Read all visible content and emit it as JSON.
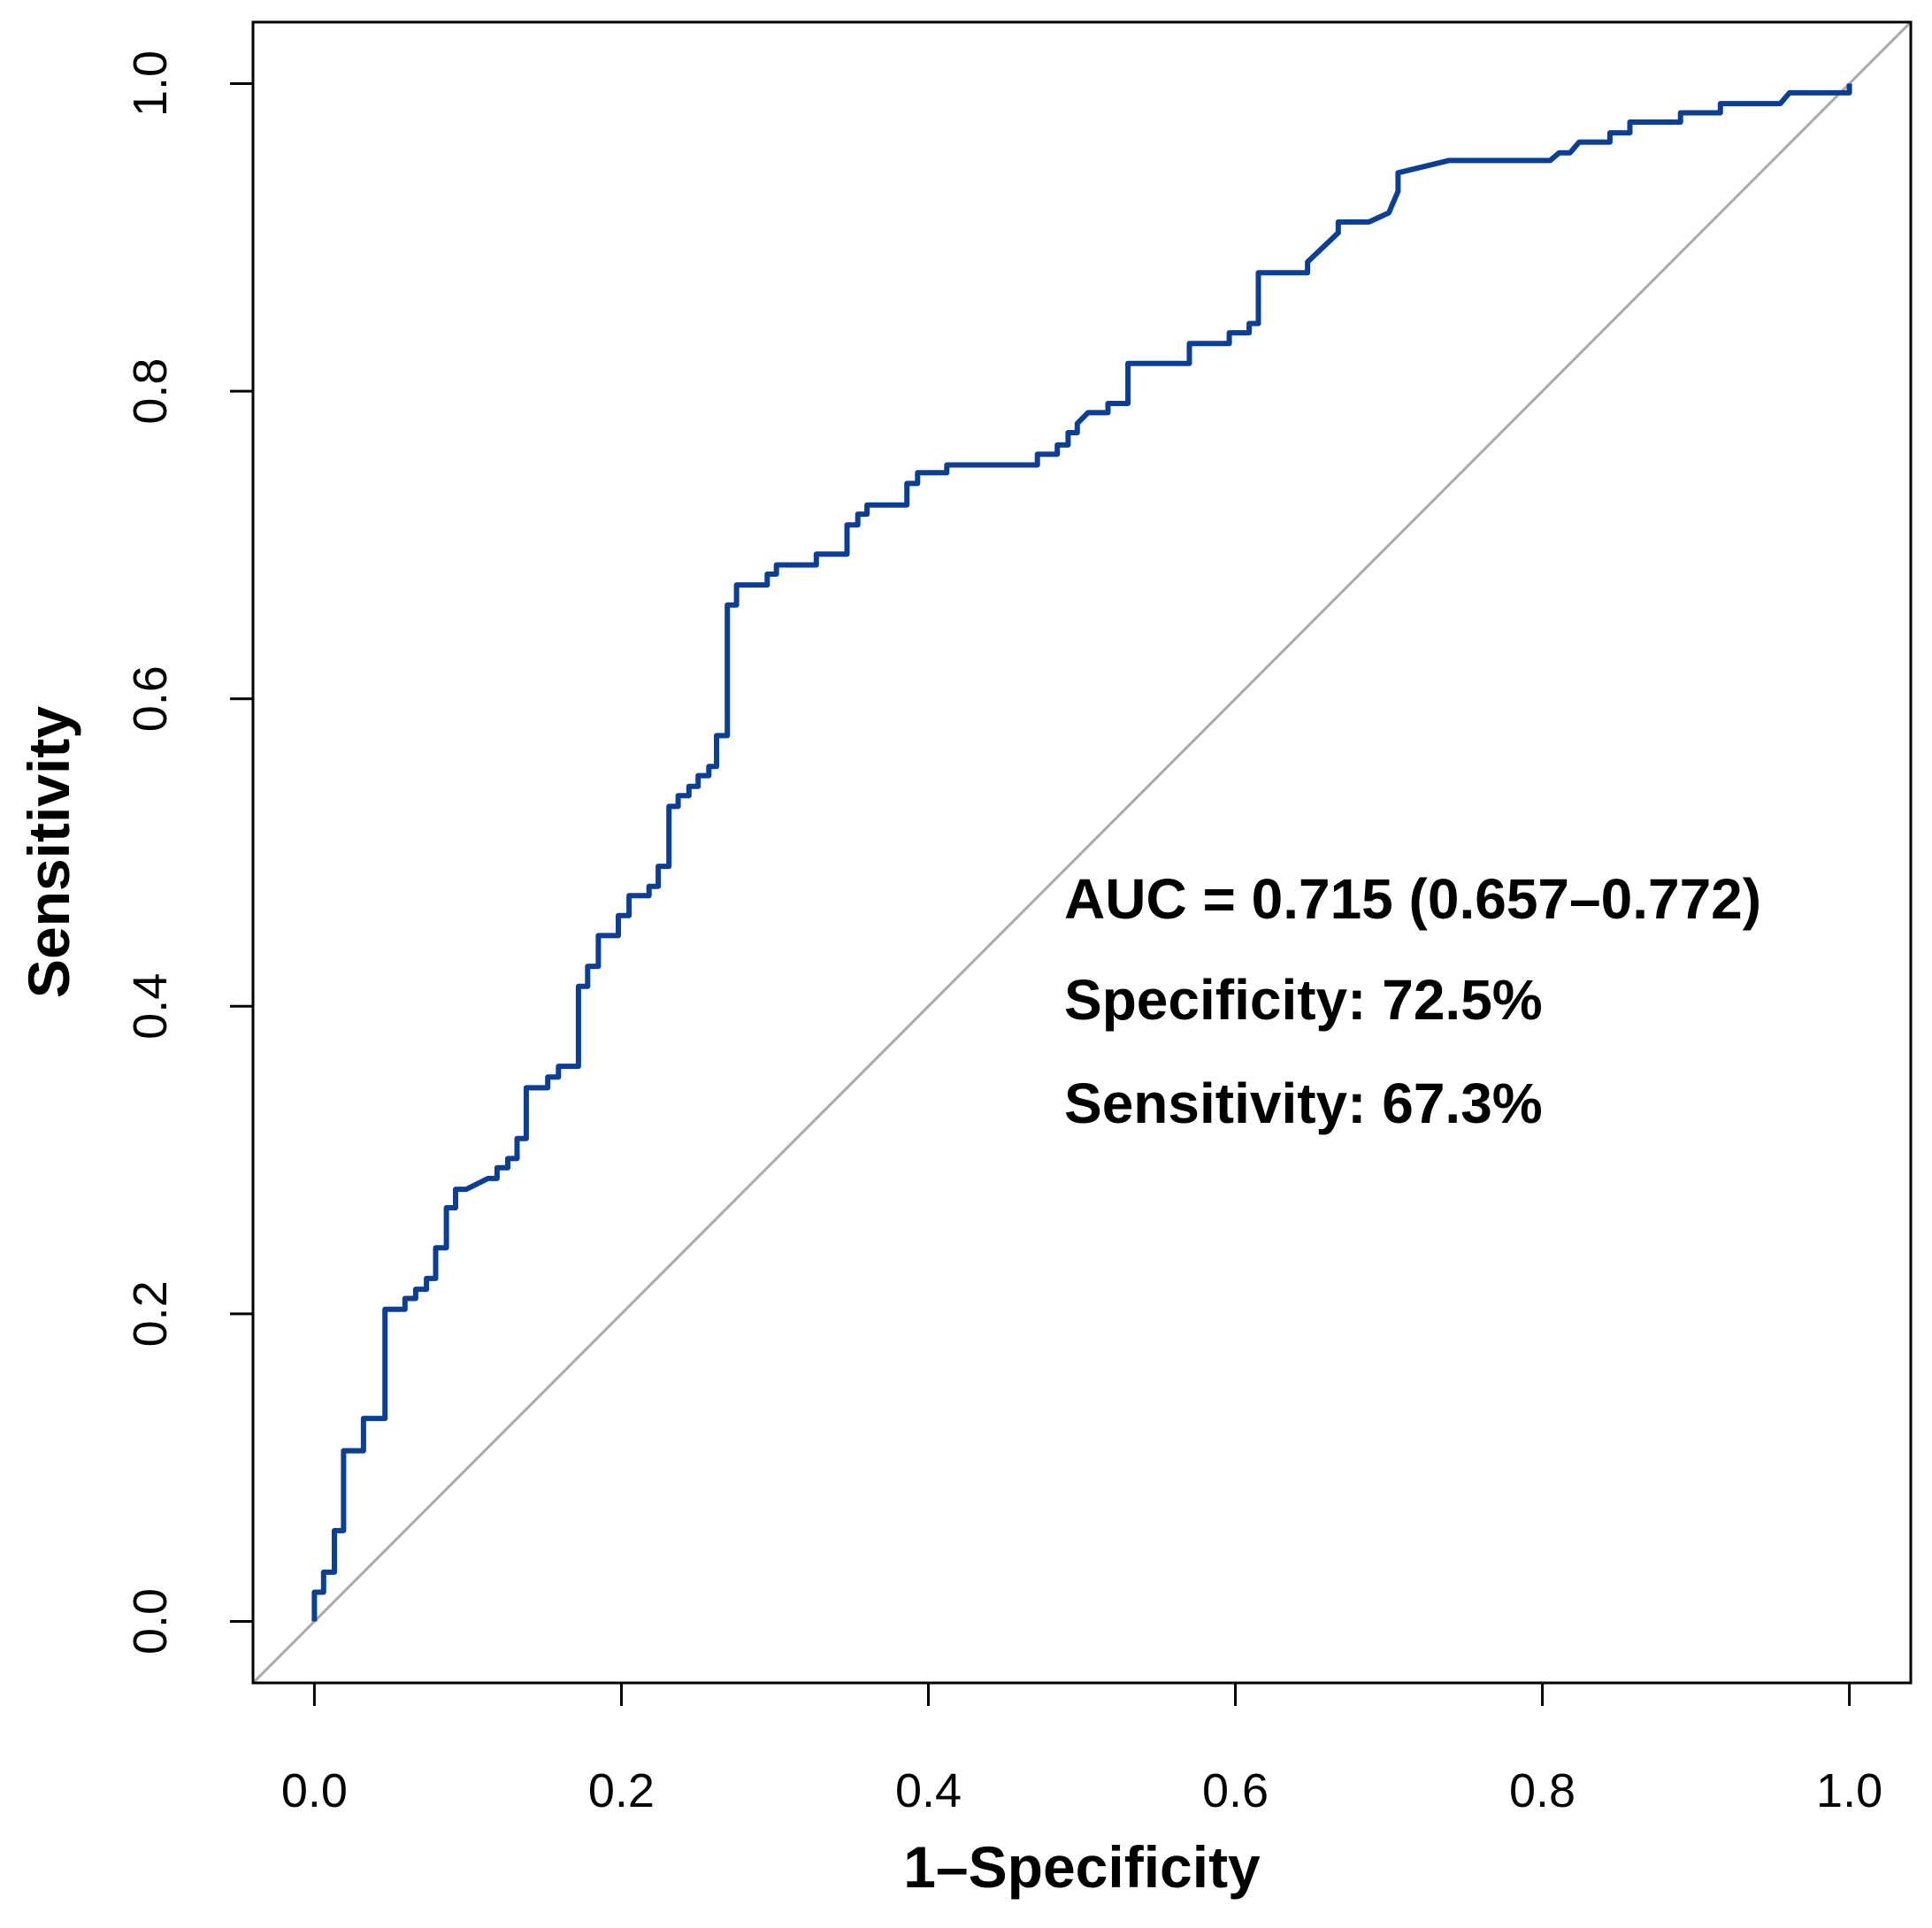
{
  "chart_data": {
    "type": "line",
    "xlabel": "1–Specificity",
    "ylabel": "Sensitivity",
    "annotations": [
      "AUC = 0.715 (0.657–0.772)",
      "Specificity: 72.5%",
      "Sensitivity: 67.3%"
    ],
    "color": "#0b3f96",
    "reference_color": "#aaaaaa",
    "xlim": [
      -0.04,
      1.04
    ],
    "ylim": [
      -0.04,
      1.04
    ],
    "xticks": [
      {
        "value": 0,
        "label": "0.0"
      },
      {
        "value": 0.2,
        "label": "0.2"
      },
      {
        "value": 0.4,
        "label": "0.4"
      },
      {
        "value": 0.6,
        "label": "0.6"
      },
      {
        "value": 0.8,
        "label": "0.8"
      },
      {
        "value": 1,
        "label": "1.0"
      }
    ],
    "yticks": [
      {
        "value": 0,
        "label": "0.0"
      },
      {
        "value": 0.2,
        "label": "0.2"
      },
      {
        "value": 0.4,
        "label": "0.4"
      },
      {
        "value": 0.6,
        "label": "0.6"
      },
      {
        "value": 0.8,
        "label": "0.8"
      },
      {
        "value": 1,
        "label": "1.0"
      }
    ],
    "x": [
      0,
      0,
      0.006,
      0.006,
      0.013,
      0.013,
      0.019,
      0.019,
      0.032,
      0.032,
      0.046,
      0.046,
      0.059,
      0.059,
      0.066,
      0.066,
      0.073,
      0.073,
      0.079,
      0.079,
      0.086,
      0.086,
      0.092,
      0.092,
      0.099,
      0.113,
      0.119,
      0.119,
      0.126,
      0.126,
      0.132,
      0.132,
      0.138,
      0.138,
      0.152,
      0.152,
      0.159,
      0.159,
      0.172,
      0.172,
      0.178,
      0.178,
      0.185,
      0.185,
      0.198,
      0.198,
      0.205,
      0.205,
      0.218,
      0.218,
      0.224,
      0.224,
      0.231,
      0.231,
      0.237,
      0.237,
      0.244,
      0.244,
      0.25,
      0.25,
      0.257,
      0.257,
      0.262,
      0.262,
      0.269,
      0.269,
      0.275,
      0.275,
      0.295,
      0.295,
      0.301,
      0.301,
      0.327,
      0.327,
      0.347,
      0.347,
      0.354,
      0.354,
      0.36,
      0.36,
      0.386,
      0.386,
      0.393,
      0.393,
      0.412,
      0.412,
      0.471,
      0.471,
      0.484,
      0.484,
      0.491,
      0.491,
      0.497,
      0.497,
      0.504,
      0.517,
      0.517,
      0.53,
      0.53,
      0.57,
      0.57,
      0.596,
      0.596,
      0.609,
      0.609,
      0.615,
      0.615,
      0.647,
      0.647,
      0.667,
      0.667,
      0.687,
      0.7,
      0.706,
      0.706,
      0.739,
      0.805,
      0.811,
      0.818,
      0.824,
      0.844,
      0.844,
      0.857,
      0.857,
      0.89,
      0.89,
      0.916,
      0.916,
      0.955,
      0.961,
      1,
      1
    ],
    "values": [
      0,
      0.019,
      0.019,
      0.032,
      0.032,
      0.059,
      0.059,
      0.111,
      0.111,
      0.132,
      0.132,
      0.203,
      0.203,
      0.21,
      0.21,
      0.216,
      0.216,
      0.223,
      0.223,
      0.243,
      0.243,
      0.269,
      0.269,
      0.281,
      0.281,
      0.288,
      0.288,
      0.295,
      0.295,
      0.301,
      0.301,
      0.314,
      0.314,
      0.347,
      0.347,
      0.354,
      0.354,
      0.361,
      0.361,
      0.413,
      0.413,
      0.426,
      0.426,
      0.446,
      0.446,
      0.459,
      0.459,
      0.472,
      0.472,
      0.478,
      0.478,
      0.491,
      0.491,
      0.53,
      0.53,
      0.537,
      0.537,
      0.543,
      0.543,
      0.55,
      0.55,
      0.556,
      0.556,
      0.576,
      0.576,
      0.661,
      0.661,
      0.674,
      0.674,
      0.681,
      0.681,
      0.687,
      0.687,
      0.694,
      0.694,
      0.713,
      0.713,
      0.72,
      0.72,
      0.726,
      0.726,
      0.74,
      0.74,
      0.747,
      0.747,
      0.752,
      0.752,
      0.759,
      0.759,
      0.765,
      0.765,
      0.773,
      0.773,
      0.779,
      0.786,
      0.786,
      0.792,
      0.792,
      0.818,
      0.818,
      0.831,
      0.831,
      0.838,
      0.838,
      0.844,
      0.844,
      0.877,
      0.877,
      0.884,
      0.903,
      0.91,
      0.91,
      0.916,
      0.93,
      0.942,
      0.95,
      0.95,
      0.955,
      0.955,
      0.962,
      0.962,
      0.968,
      0.968,
      0.975,
      0.975,
      0.981,
      0.981,
      0.987,
      0.987,
      0.994,
      0.994,
      1
    ]
  }
}
